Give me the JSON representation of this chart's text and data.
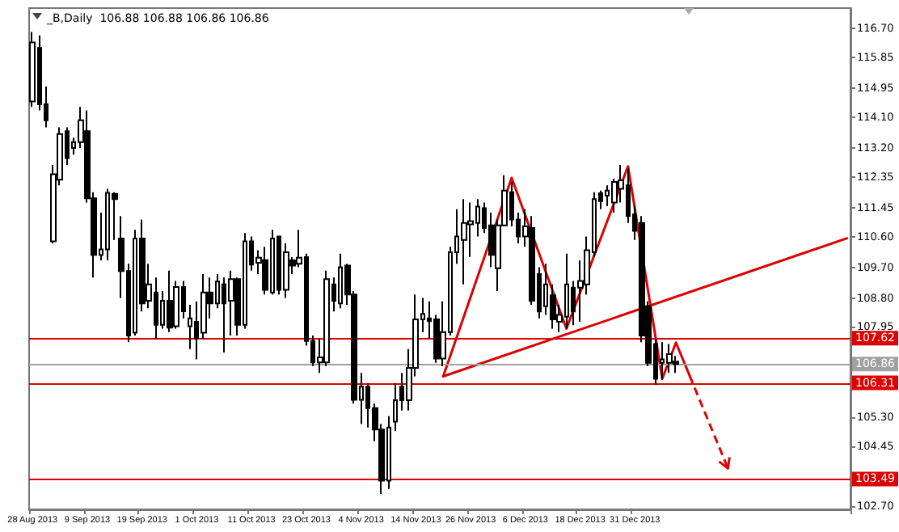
{
  "chart_data": {
    "type": "candlestick",
    "title": "_B,Daily  106.88 106.88 106.86 106.86",
    "categories": [
      "28 Aug 2013",
      null,
      null,
      null,
      null,
      null,
      null,
      null,
      "9 Sep 2013",
      null,
      null,
      null,
      null,
      null,
      null,
      null,
      "19 Sep 2013",
      null,
      null,
      null,
      null,
      null,
      null,
      null,
      "1 Oct 2013",
      null,
      null,
      null,
      null,
      null,
      null,
      null,
      "11 Oct 2013",
      null,
      null,
      null,
      null,
      null,
      null,
      null,
      "23 Oct 2013",
      null,
      null,
      null,
      null,
      null,
      null,
      null,
      "4 Nov 2013",
      null,
      null,
      null,
      null,
      null,
      null,
      null,
      "14 Nov 2013",
      null,
      null,
      null,
      null,
      null,
      null,
      null,
      "26 Nov 2013",
      null,
      null,
      null,
      null,
      null,
      null,
      null,
      "6 Dec 2013",
      null,
      null,
      null,
      null,
      null,
      null,
      null,
      "18 Dec 2013",
      null,
      null,
      null,
      null,
      null,
      null,
      null,
      "31 Dec 2013",
      null,
      null,
      null,
      null,
      null,
      null,
      null,
      null,
      null,
      null,
      null,
      null,
      null,
      null,
      null,
      null,
      null,
      null,
      null,
      null,
      null,
      null,
      null,
      null,
      null,
      null,
      null,
      null,
      null,
      null,
      null
    ],
    "series": [
      {
        "type": "candlestick",
        "color": "#000000",
        "ohlc": [
          [
            114.56,
            116.6,
            114.4,
            116.29
          ],
          [
            116.13,
            116.5,
            114.3,
            114.48
          ],
          [
            114.48,
            115.0,
            113.8,
            114.01
          ],
          [
            110.46,
            112.7,
            110.4,
            112.43
          ],
          [
            112.27,
            113.8,
            112.1,
            113.61
          ],
          [
            113.69,
            113.8,
            112.7,
            112.9
          ],
          [
            113.2,
            113.5,
            113.0,
            113.37
          ],
          [
            113.37,
            114.4,
            113.2,
            114.01
          ],
          [
            113.69,
            114.3,
            111.6,
            111.72
          ],
          [
            111.72,
            111.9,
            109.4,
            110.06
          ],
          [
            110.06,
            111.3,
            109.9,
            110.22
          ],
          [
            110.22,
            112.0,
            109.9,
            111.88
          ],
          [
            111.85,
            111.9,
            110.5,
            111.7
          ],
          [
            110.54,
            111.2,
            108.8,
            109.59
          ],
          [
            109.59,
            109.8,
            107.5,
            107.7
          ],
          [
            107.78,
            110.8,
            107.7,
            110.54
          ],
          [
            110.54,
            111.1,
            108.4,
            108.64
          ],
          [
            108.72,
            109.8,
            108.5,
            109.2
          ],
          [
            108.96,
            109.4,
            107.6,
            108.01
          ],
          [
            108.01,
            109.0,
            107.9,
            108.72
          ],
          [
            108.72,
            109.6,
            107.8,
            107.93
          ],
          [
            107.97,
            109.3,
            107.9,
            109.12
          ],
          [
            109.12,
            109.3,
            108.2,
            108.41
          ],
          [
            107.97,
            108.6,
            107.3,
            108.2
          ],
          [
            108.1,
            108.7,
            107.0,
            107.62
          ],
          [
            107.78,
            109.5,
            107.6,
            108.96
          ],
          [
            108.96,
            109.4,
            108.2,
            108.64
          ],
          [
            108.64,
            109.5,
            108.5,
            109.28
          ],
          [
            109.2,
            109.4,
            107.2,
            108.64
          ],
          [
            108.72,
            109.6,
            107.7,
            109.35
          ],
          [
            109.35,
            109.4,
            107.7,
            108.01
          ],
          [
            108.01,
            110.7,
            107.9,
            110.46
          ],
          [
            110.46,
            110.6,
            109.6,
            109.78
          ],
          [
            109.83,
            110.2,
            109.5,
            109.98
          ],
          [
            109.91,
            110.3,
            108.9,
            109.04
          ],
          [
            108.96,
            110.8,
            108.9,
            110.54
          ],
          [
            110.6,
            110.6,
            108.9,
            109.04
          ],
          [
            109.04,
            110.4,
            108.8,
            110.14
          ],
          [
            109.9,
            110.0,
            109.5,
            109.75
          ],
          [
            109.8,
            110.8,
            109.7,
            109.98
          ],
          [
            110.0,
            110.1,
            107.4,
            107.54
          ],
          [
            107.54,
            107.7,
            106.8,
            106.91
          ],
          [
            106.91,
            107.6,
            106.6,
            107.06
          ],
          [
            106.91,
            109.6,
            106.8,
            109.35
          ],
          [
            109.2,
            109.4,
            108.4,
            108.72
          ],
          [
            108.64,
            110.1,
            108.5,
            109.7
          ],
          [
            109.75,
            109.8,
            108.6,
            108.9
          ],
          [
            108.9,
            109.0,
            105.7,
            105.81
          ],
          [
            105.81,
            106.6,
            105.1,
            106.2
          ],
          [
            106.2,
            106.3,
            105.0,
            105.57
          ],
          [
            105.57,
            105.7,
            104.6,
            104.94
          ],
          [
            104.94,
            105.1,
            103.05,
            103.44
          ],
          [
            103.44,
            105.33,
            103.2,
            105.0
          ],
          [
            105.17,
            106.3,
            104.9,
            105.8
          ],
          [
            106.2,
            106.6,
            105.5,
            105.8
          ],
          [
            105.8,
            107.3,
            105.5,
            106.75
          ],
          [
            106.75,
            108.9,
            106.5,
            108.17
          ],
          [
            108.17,
            108.8,
            107.8,
            108.33
          ],
          [
            108.2,
            108.7,
            107.6,
            108.12
          ],
          [
            108.17,
            108.3,
            106.9,
            107.02
          ],
          [
            107.02,
            108.7,
            106.8,
            107.8
          ],
          [
            107.8,
            110.3,
            107.7,
            110.14
          ],
          [
            110.14,
            111.4,
            109.8,
            110.6
          ],
          [
            110.5,
            111.7,
            109.2,
            111.0
          ],
          [
            110.96,
            111.6,
            110.0,
            111.05
          ],
          [
            111.0,
            111.7,
            110.6,
            111.48
          ],
          [
            111.43,
            111.6,
            110.7,
            110.85
          ],
          [
            110.93,
            111.3,
            109.7,
            110.06
          ],
          [
            109.67,
            111.1,
            109.0,
            110.93
          ],
          [
            110.93,
            112.4,
            110.9,
            111.95
          ],
          [
            111.9,
            112.2,
            110.9,
            111.1
          ],
          [
            111.1,
            111.3,
            110.4,
            110.6
          ],
          [
            110.6,
            111.4,
            110.3,
            110.9
          ],
          [
            110.85,
            111.2,
            108.6,
            108.72
          ],
          [
            109.5,
            109.7,
            108.2,
            108.4
          ],
          [
            108.56,
            109.8,
            108.3,
            109.2
          ],
          [
            108.88,
            109.2,
            107.9,
            108.17
          ],
          [
            108.1,
            108.6,
            107.8,
            108.3
          ],
          [
            108.25,
            110.1,
            107.9,
            109.2
          ],
          [
            109.1,
            109.3,
            108.0,
            108.4
          ],
          [
            109.1,
            109.9,
            108.1,
            109.3
          ],
          [
            109.2,
            110.6,
            108.9,
            110.2
          ],
          [
            110.14,
            111.9,
            110.0,
            111.7
          ],
          [
            111.87,
            111.95,
            111.4,
            111.64
          ],
          [
            111.8,
            112.1,
            111.5,
            111.95
          ],
          [
            111.6,
            112.3,
            111.3,
            112.2
          ],
          [
            112.0,
            112.7,
            111.6,
            112.25
          ],
          [
            112.1,
            112.6,
            111.0,
            111.2
          ],
          [
            111.25,
            111.5,
            110.5,
            110.77
          ],
          [
            111.0,
            111.2,
            107.5,
            107.7
          ],
          [
            108.56,
            108.7,
            106.8,
            106.9
          ],
          [
            107.45,
            107.6,
            106.25,
            106.43
          ],
          [
            106.9,
            107.5,
            106.4,
            107.0
          ],
          [
            106.9,
            107.45,
            106.6,
            107.15
          ],
          [
            106.93,
            107.1,
            106.6,
            106.86
          ],
          null,
          null,
          null,
          null,
          null,
          null,
          null,
          null,
          null,
          null,
          null,
          null,
          null,
          null,
          null,
          null,
          null,
          null,
          null,
          null,
          null,
          null,
          null,
          null,
          null
        ]
      },
      {
        "type": "line",
        "color": "#dd0000",
        "line_style": "solid",
        "values": [
          null,
          null,
          null,
          null,
          null,
          null,
          null,
          null,
          null,
          null,
          null,
          null,
          null,
          null,
          null,
          null,
          null,
          null,
          null,
          null,
          null,
          null,
          null,
          null,
          null,
          null,
          null,
          null,
          null,
          null,
          null,
          null,
          null,
          null,
          null,
          null,
          null,
          null,
          null,
          null,
          null,
          null,
          null,
          null,
          null,
          null,
          null,
          null,
          null,
          null,
          null,
          null,
          null,
          null,
          null,
          null,
          null,
          null,
          null,
          null,
          106.5,
          null,
          null,
          null,
          null,
          null,
          null,
          null,
          null,
          null,
          null,
          null,
          null,
          null,
          null,
          null,
          null,
          null,
          null,
          null,
          null,
          null,
          null,
          null,
          null,
          null,
          null,
          null,
          null,
          null,
          null,
          null,
          null,
          null,
          null,
          null,
          null,
          null,
          null,
          null,
          null,
          null,
          null,
          null,
          null,
          null,
          null,
          null,
          null,
          null,
          null,
          null,
          null,
          null,
          null,
          null,
          null,
          null,
          null,
          110.55
        ]
      },
      {
        "type": "line",
        "color": "#dd0000",
        "line_style": "solid",
        "values": [
          null,
          null,
          null,
          null,
          null,
          null,
          null,
          null,
          null,
          null,
          null,
          null,
          null,
          null,
          null,
          null,
          null,
          null,
          null,
          null,
          null,
          null,
          null,
          null,
          null,
          null,
          null,
          null,
          null,
          null,
          null,
          null,
          null,
          null,
          null,
          null,
          null,
          null,
          null,
          null,
          null,
          null,
          null,
          null,
          null,
          null,
          null,
          null,
          null,
          null,
          null,
          null,
          null,
          null,
          null,
          null,
          null,
          null,
          null,
          null,
          106.5,
          null,
          null,
          null,
          null,
          null,
          null,
          null,
          null,
          null,
          112.32,
          null,
          null,
          null,
          null,
          null,
          null,
          null,
          107.9,
          null,
          null,
          null,
          null,
          null,
          null,
          null,
          null,
          112.66,
          null,
          null,
          null,
          null,
          106.43,
          null,
          107.49,
          null,
          106.52,
          null,
          null,
          null,
          null,
          null,
          null,
          null,
          null,
          null,
          null,
          null,
          null,
          null,
          null,
          null,
          null,
          null,
          null,
          null,
          null,
          null,
          null,
          null
        ]
      }
    ],
    "ylim": [
      102.6,
      117.3
    ],
    "yticks": [
      {
        "value": 116.7,
        "label": "116.70"
      },
      115.85,
      114.95,
      {
        "value": 114.1,
        "label": "114.10"
      },
      {
        "value": 113.2,
        "label": "113.20"
      },
      112.35,
      111.45,
      {
        "value": 110.6,
        "label": "110.60"
      },
      {
        "value": 109.7,
        "label": "109.70"
      },
      {
        "value": 108.8,
        "label": "108.80"
      },
      107.95,
      {
        "value": 105.3,
        "label": "105.30"
      },
      104.45,
      {
        "value": 102.7,
        "label": "102.70"
      }
    ],
    "ref_lines": [
      {
        "axis": "y",
        "value": 107.62,
        "label": "107.62",
        "color": "#dd0000"
      },
      {
        "axis": "y",
        "value": 106.31,
        "label": "106.31",
        "color": "#dd0000"
      },
      {
        "axis": "y",
        "value": 103.49,
        "label": "103.49",
        "color": "#dd0000"
      },
      {
        "axis": "y",
        "value": 106.86,
        "label": "106.86",
        "color": "#a0a0a0"
      }
    ],
    "grid": false
  }
}
